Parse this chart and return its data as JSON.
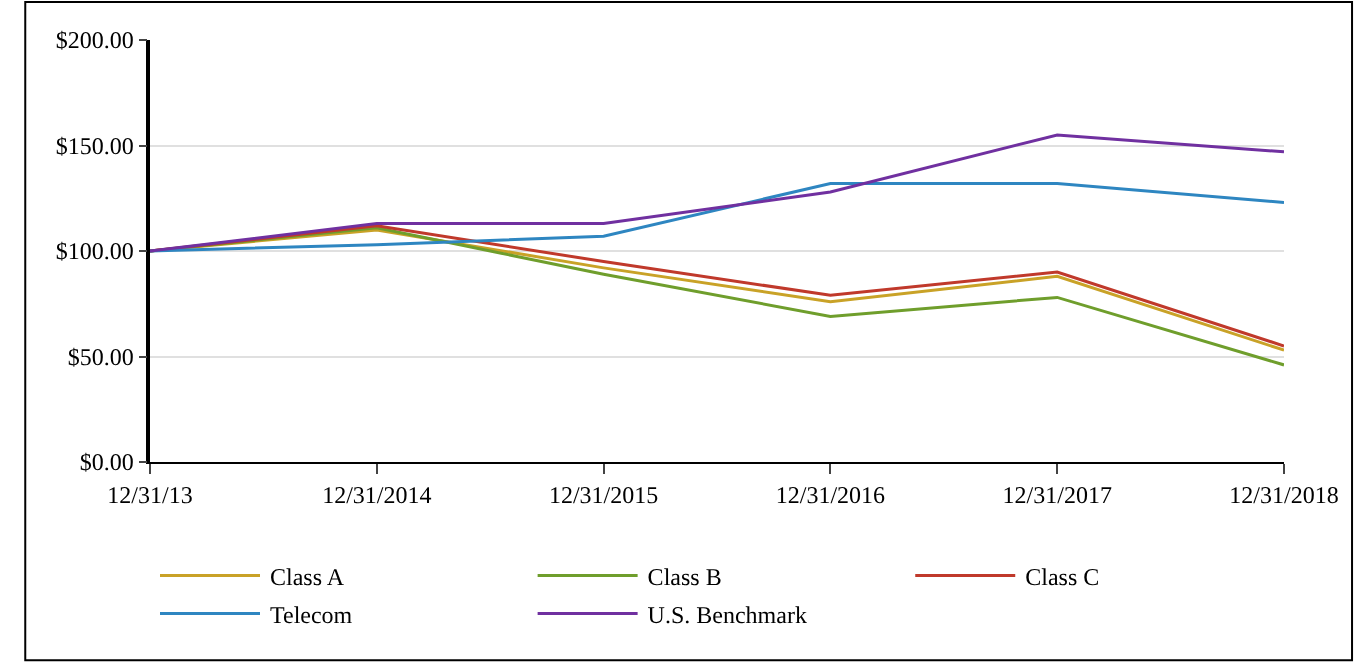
{
  "chart_data": {
    "type": "line",
    "categories": [
      "12/31/13",
      "12/31/2014",
      "12/31/2015",
      "12/31/2016",
      "12/31/2017",
      "12/31/2018"
    ],
    "series": [
      {
        "name": "Class A",
        "color": "#c9a227",
        "values": [
          100,
          110,
          92,
          76,
          88,
          53
        ]
      },
      {
        "name": "Class B",
        "color": "#6f9e2c",
        "values": [
          100,
          111,
          89,
          69,
          78,
          46
        ]
      },
      {
        "name": "Class C",
        "color": "#c0392b",
        "values": [
          100,
          112,
          95,
          79,
          90,
          55
        ]
      },
      {
        "name": "Telecom",
        "color": "#2e86c1",
        "values": [
          100,
          103,
          107,
          132,
          132,
          123
        ]
      },
      {
        "name": "U.S. Benchmark",
        "color": "#7030a0",
        "values": [
          100,
          113,
          113,
          128,
          155,
          147
        ]
      }
    ],
    "ylim": [
      0,
      200
    ],
    "yticks": [
      {
        "value": 0,
        "label": "$0.00"
      },
      {
        "value": 50,
        "label": "$50.00"
      },
      {
        "value": 100,
        "label": "$100.00"
      },
      {
        "value": 150,
        "label": "$150.00"
      },
      {
        "value": 200,
        "label": "$200.00"
      }
    ],
    "grid": "y",
    "legend": "bottom",
    "marker": "none",
    "line_style": "solid"
  }
}
